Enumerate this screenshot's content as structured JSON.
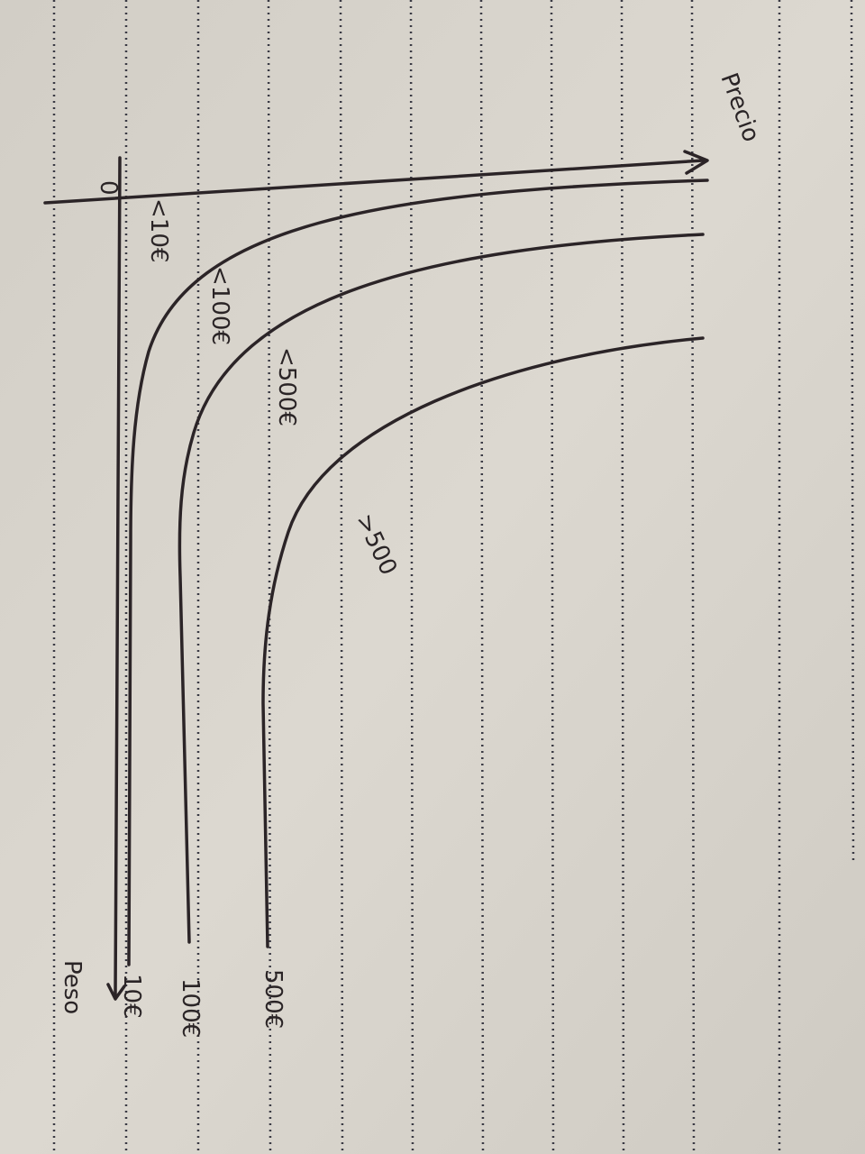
{
  "axes": {
    "x_label": "Precio",
    "y_label": "Peso",
    "origin": "0"
  },
  "curves": [
    {
      "price_label": "<10€",
      "weight_label": "10€"
    },
    {
      "price_label": "<100€",
      "weight_label": "100€"
    },
    {
      "price_label": "<500€",
      "weight_label": "500€"
    },
    {
      "price_label": ">500"
    }
  ]
}
